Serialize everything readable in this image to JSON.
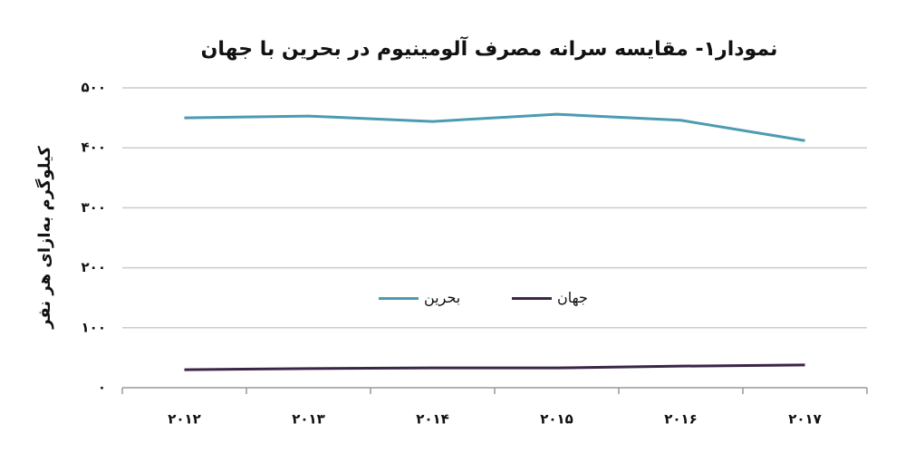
{
  "chart_data": {
    "type": "line",
    "title": "نمودار۱- مقایسه سرانه مصرف آلومینیوم در بحرین با جهان",
    "y_label": "کیلوگرم به‌ازای هر نفر",
    "categories": [
      "۲۰۱۲",
      "۲۰۱۳",
      "۲۰۱۴",
      "۲۰۱۵",
      "۲۰۱۶",
      "۲۰۱۷"
    ],
    "series": [
      {
        "name": "بحرین",
        "color": "#4b9bb1",
        "values": [
          450,
          453,
          444,
          456,
          446,
          412
        ]
      },
      {
        "name": "جهان",
        "color": "#3b2646",
        "values": [
          30,
          32,
          33,
          33,
          36,
          38
        ]
      }
    ],
    "ylim": [
      0,
      500
    ],
    "yticks": [
      {
        "value": 0,
        "label": "۰"
      },
      {
        "value": 100,
        "label": "۱۰۰"
      },
      {
        "value": 200,
        "label": "۲۰۰"
      },
      {
        "value": 300,
        "label": "۳۰۰"
      },
      {
        "value": 400,
        "label": "۴۰۰"
      },
      {
        "value": 500,
        "label": "۵۰۰"
      }
    ],
    "grid": true,
    "legend": "center"
  }
}
